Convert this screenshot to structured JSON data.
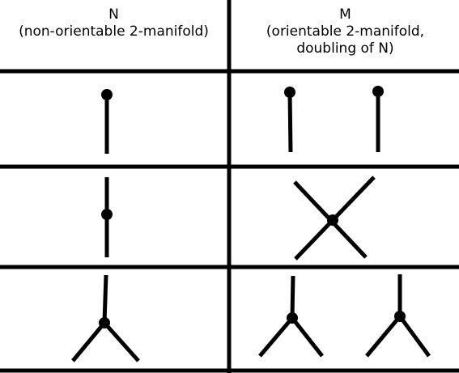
{
  "columns": [
    {
      "name": "N",
      "lines": [
        "(non-orientable 2-manifold)"
      ]
    },
    {
      "name": "M",
      "lines": [
        "(orientable 2-manifold,",
        "doubling of N)"
      ]
    }
  ],
  "colors": {
    "ink": "#000000",
    "background": "#ffffff"
  },
  "rows": [
    {
      "id": "endpoint",
      "n_figures": 1,
      "m_figures": 2
    },
    {
      "id": "interior-point",
      "n_figures": 1,
      "m_figures": 1
    },
    {
      "id": "triple-junction",
      "n_figures": 1,
      "m_figures": 2
    }
  ]
}
